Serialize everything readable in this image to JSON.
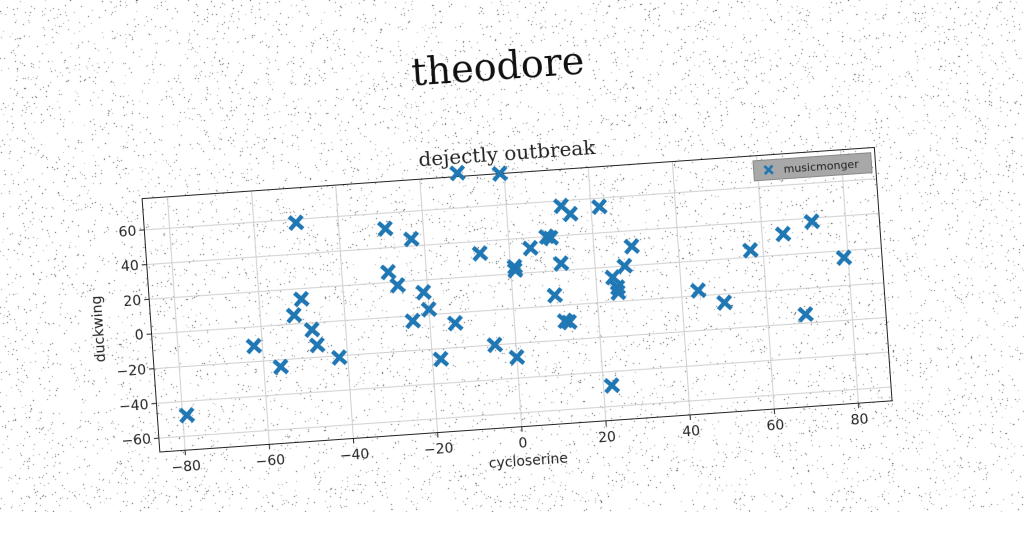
{
  "figure_title": "theodore",
  "chart_data": {
    "type": "scatter",
    "title": "dejectly outbreak",
    "xlabel": "cycloserine",
    "ylabel": "duckwing",
    "xlim": [
      -86,
      88
    ],
    "ylim": [
      -68,
      78
    ],
    "xticks": [
      -80,
      -60,
      -40,
      -20,
      0,
      20,
      40,
      60,
      80
    ],
    "yticks": [
      -60,
      -40,
      -20,
      0,
      20,
      40,
      60
    ],
    "grid": true,
    "legend_position": "top-right",
    "marker": "X",
    "series": [
      {
        "name": "musicmonger",
        "color": "#1f77b4",
        "points": [
          [
            -79,
            -48
          ],
          [
            -62,
            -11
          ],
          [
            -56,
            -24
          ],
          [
            -52,
            5
          ],
          [
            -50,
            58
          ],
          [
            -50,
            14
          ],
          [
            -48,
            -4
          ],
          [
            -47,
            -13
          ],
          [
            -42,
            -21
          ],
          [
            -29,
            51
          ],
          [
            -29,
            26
          ],
          [
            -27,
            18
          ],
          [
            -24,
            -3
          ],
          [
            -23,
            44
          ],
          [
            -21,
            13
          ],
          [
            -20,
            3
          ],
          [
            -18,
            -26
          ],
          [
            -14,
            -6
          ],
          [
            -11,
            80
          ],
          [
            -7,
            33
          ],
          [
            -5,
            -20
          ],
          [
            -1,
            78
          ],
          [
            0,
            -28
          ],
          [
            1,
            22
          ],
          [
            1,
            24
          ],
          [
            5,
            34
          ],
          [
            9,
            40
          ],
          [
            10,
            39
          ],
          [
            10,
            6
          ],
          [
            12,
            -9
          ],
          [
            12,
            24
          ],
          [
            13,
            -10
          ],
          [
            13,
            57
          ],
          [
            15,
            52
          ],
          [
            22,
            55
          ],
          [
            22,
            -48
          ],
          [
            24,
            14
          ],
          [
            25,
            8
          ],
          [
            25,
            5
          ],
          [
            27,
            20
          ],
          [
            29,
            31
          ],
          [
            44,
            3
          ],
          [
            50,
            -5
          ],
          [
            57,
            24
          ],
          [
            65,
            32
          ],
          [
            72,
            38
          ],
          [
            69,
            -15
          ],
          [
            79,
            16
          ]
        ]
      }
    ]
  }
}
